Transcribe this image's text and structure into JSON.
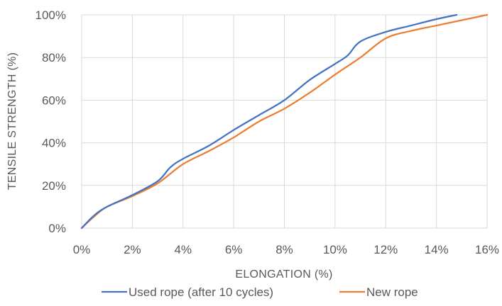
{
  "chart_data": {
    "type": "line",
    "title": "",
    "xlabel": "ELONGATION (%)",
    "ylabel": "TENSILE STRENGTH (%)",
    "xlim": [
      0,
      16
    ],
    "ylim": [
      0,
      100
    ],
    "x_ticks": [
      0,
      2,
      4,
      6,
      8,
      10,
      12,
      14,
      16
    ],
    "x_tick_labels": [
      "0%",
      "2%",
      "4%",
      "6%",
      "8%",
      "10%",
      "12%",
      "14%",
      "16%"
    ],
    "y_ticks": [
      0,
      20,
      40,
      60,
      80,
      100
    ],
    "y_tick_labels": [
      "0%",
      "20%",
      "40%",
      "60%",
      "80%",
      "100%"
    ],
    "grid": true,
    "legend_position": "bottom",
    "series": [
      {
        "name": "Used rope (after 10 cycles)",
        "color": "#4472C4",
        "points": [
          [
            0,
            0
          ],
          [
            0.5,
            6
          ],
          [
            1,
            10
          ],
          [
            2,
            15.5
          ],
          [
            3,
            22
          ],
          [
            3.5,
            28.5
          ],
          [
            4,
            32.5
          ],
          [
            5,
            38.5
          ],
          [
            6,
            46
          ],
          [
            7,
            53
          ],
          [
            8,
            60
          ],
          [
            9,
            69.5
          ],
          [
            10,
            77
          ],
          [
            10.5,
            81
          ],
          [
            11,
            87.5
          ],
          [
            12,
            92
          ],
          [
            13,
            95
          ],
          [
            14,
            98
          ],
          [
            14.8,
            100
          ]
        ]
      },
      {
        "name": "New rope",
        "color": "#ED7D31",
        "points": [
          [
            0,
            0
          ],
          [
            0.5,
            5.5
          ],
          [
            1,
            10
          ],
          [
            2,
            15
          ],
          [
            3,
            21
          ],
          [
            4,
            30
          ],
          [
            5,
            36
          ],
          [
            6,
            42.5
          ],
          [
            7,
            50
          ],
          [
            8,
            56
          ],
          [
            9,
            63.5
          ],
          [
            10,
            72
          ],
          [
            11,
            80
          ],
          [
            12,
            89
          ],
          [
            13,
            92.5
          ],
          [
            14,
            95
          ],
          [
            15,
            97.5
          ],
          [
            16,
            100
          ]
        ]
      }
    ]
  }
}
